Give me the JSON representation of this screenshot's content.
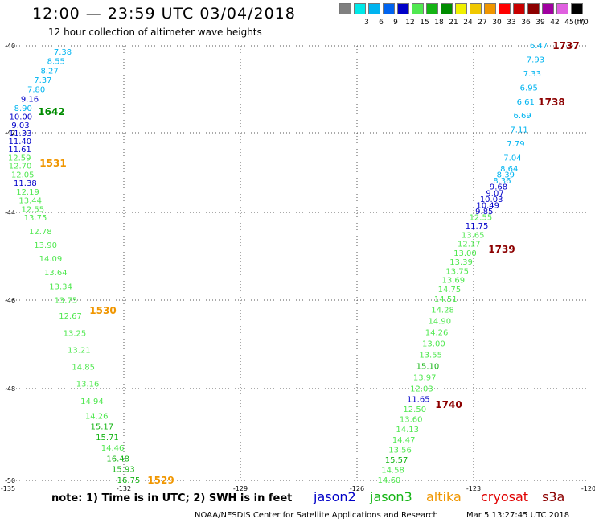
{
  "header": {
    "title": "12:00 — 23:59 UTC 03/04/2018",
    "subtitle": "12 hour collection of altimeter wave heights"
  },
  "colorbar": {
    "unit": "(ft)",
    "swatches": [
      {
        "label": "",
        "color": "#808080"
      },
      {
        "label": "3",
        "color": "#00e8e8"
      },
      {
        "label": "6",
        "color": "#00b4f0"
      },
      {
        "label": "9",
        "color": "#0064f0"
      },
      {
        "label": "12",
        "color": "#0000c8"
      },
      {
        "label": "15",
        "color": "#50e850"
      },
      {
        "label": "18",
        "color": "#14b414"
      },
      {
        "label": "21",
        "color": "#008c00"
      },
      {
        "label": "24",
        "color": "#f0f000"
      },
      {
        "label": "27",
        "color": "#f0c800"
      },
      {
        "label": "30",
        "color": "#f09600"
      },
      {
        "label": "33",
        "color": "#ff0000"
      },
      {
        "label": "36",
        "color": "#c80000"
      },
      {
        "label": "39",
        "color": "#8c0000"
      },
      {
        "label": "42",
        "color": "#a000a0"
      },
      {
        "label": "45",
        "color": "#e060e0"
      },
      {
        "label": "70",
        "color": "#000000"
      }
    ]
  },
  "map": {
    "lat_labels": [
      "-40",
      "-42",
      "-44",
      "-46",
      "-48",
      "-50"
    ],
    "lon_labels": [
      "-135",
      "-132",
      "-129",
      "-126",
      "-123",
      "-120"
    ],
    "west_track": [
      {
        "v": "7.38",
        "c": "#00b4f0"
      },
      {
        "v": "8.55",
        "c": "#00b4f0"
      },
      {
        "v": "8.27",
        "c": "#00b4f0"
      },
      {
        "v": "7.37",
        "c": "#00b4f0"
      },
      {
        "v": "7.80",
        "c": "#00b4f0"
      },
      {
        "v": "9.16",
        "c": "#0000c8"
      },
      {
        "v": "8.90",
        "c": "#00b4f0"
      },
      {
        "v": "10.00",
        "c": "#0000c8"
      },
      {
        "v": "9.03",
        "c": "#0000c8"
      },
      {
        "v": "11.33",
        "c": "#0000c8"
      },
      {
        "v": "11.40",
        "c": "#0000c8"
      },
      {
        "v": "11.61",
        "c": "#0000c8"
      },
      {
        "v": "12.59",
        "c": "#50e850"
      },
      {
        "v": "12.70",
        "c": "#50e850"
      },
      {
        "v": "12.05",
        "c": "#50e850"
      },
      {
        "v": "11.38",
        "c": "#0000c8"
      },
      {
        "v": "12.19",
        "c": "#50e850"
      },
      {
        "v": "13.44",
        "c": "#50e850"
      },
      {
        "v": "12.55",
        "c": "#50e850"
      },
      {
        "v": "13.75",
        "c": "#50e850"
      },
      {
        "v": "12.78",
        "c": "#50e850"
      },
      {
        "v": "13.90",
        "c": "#50e850"
      },
      {
        "v": "14.09",
        "c": "#50e850"
      },
      {
        "v": "13.64",
        "c": "#50e850"
      },
      {
        "v": "13.34",
        "c": "#50e850"
      },
      {
        "v": "13.75",
        "c": "#50e850"
      },
      {
        "v": "12.67",
        "c": "#50e850"
      },
      {
        "v": "13.25",
        "c": "#50e850"
      },
      {
        "v": "13.21",
        "c": "#50e850"
      },
      {
        "v": "14.85",
        "c": "#50e850"
      },
      {
        "v": "13.16",
        "c": "#50e850"
      },
      {
        "v": "14.94",
        "c": "#50e850"
      },
      {
        "v": "14.26",
        "c": "#50e850"
      },
      {
        "v": "15.17",
        "c": "#14b414"
      },
      {
        "v": "15.71",
        "c": "#14b414"
      },
      {
        "v": "14.46",
        "c": "#50e850"
      },
      {
        "v": "16.48",
        "c": "#14b414"
      },
      {
        "v": "15.93",
        "c": "#14b414"
      },
      {
        "v": "16.75",
        "c": "#14b414"
      }
    ],
    "east_track": [
      {
        "v": "6.47",
        "c": "#00b4f0"
      },
      {
        "v": "7.93",
        "c": "#00b4f0"
      },
      {
        "v": "7.33",
        "c": "#00b4f0"
      },
      {
        "v": "6.95",
        "c": "#00b4f0"
      },
      {
        "v": "6.61",
        "c": "#00b4f0"
      },
      {
        "v": "6.69",
        "c": "#00b4f0"
      },
      {
        "v": "7.11",
        "c": "#00b4f0"
      },
      {
        "v": "7.79",
        "c": "#00b4f0"
      },
      {
        "v": "7.04",
        "c": "#00b4f0"
      },
      {
        "v": "8.64",
        "c": "#00b4f0"
      },
      {
        "v": "8.39",
        "c": "#00b4f0"
      },
      {
        "v": "8.36",
        "c": "#00b4f0"
      },
      {
        "v": "9.68",
        "c": "#0000c8"
      },
      {
        "v": "9.07",
        "c": "#0000c8"
      },
      {
        "v": "10.03",
        "c": "#0000c8"
      },
      {
        "v": "10.49",
        "c": "#0000c8"
      },
      {
        "v": "9.85",
        "c": "#0000c8"
      },
      {
        "v": "12.55",
        "c": "#50e850"
      },
      {
        "v": "11.75",
        "c": "#0000c8"
      },
      {
        "v": "13.65",
        "c": "#50e850"
      },
      {
        "v": "12.17",
        "c": "#50e850"
      },
      {
        "v": "13.00",
        "c": "#50e850"
      },
      {
        "v": "13.39",
        "c": "#50e850"
      },
      {
        "v": "13.75",
        "c": "#50e850"
      },
      {
        "v": "13.69",
        "c": "#50e850"
      },
      {
        "v": "14.75",
        "c": "#50e850"
      },
      {
        "v": "14.51",
        "c": "#50e850"
      },
      {
        "v": "14.28",
        "c": "#50e850"
      },
      {
        "v": "14.90",
        "c": "#50e850"
      },
      {
        "v": "14.26",
        "c": "#50e850"
      },
      {
        "v": "13.00",
        "c": "#50e850"
      },
      {
        "v": "13.55",
        "c": "#50e850"
      },
      {
        "v": "15.10",
        "c": "#14b414"
      },
      {
        "v": "13.97",
        "c": "#50e850"
      },
      {
        "v": "12.03",
        "c": "#50e850"
      },
      {
        "v": "11.65",
        "c": "#0000c8"
      },
      {
        "v": "12.50",
        "c": "#50e850"
      },
      {
        "v": "13.60",
        "c": "#50e850"
      },
      {
        "v": "14.13",
        "c": "#50e850"
      },
      {
        "v": "14.47",
        "c": "#50e850"
      },
      {
        "v": "13.56",
        "c": "#50e850"
      },
      {
        "v": "15.57",
        "c": "#14b414"
      },
      {
        "v": "14.58",
        "c": "#50e850"
      },
      {
        "v": "14.60",
        "c": "#50e850"
      }
    ],
    "time_markers": [
      {
        "t": "1642",
        "c": "#008c00"
      },
      {
        "t": "1531",
        "c": "#f09600"
      },
      {
        "t": "1530",
        "c": "#f09600"
      },
      {
        "t": "1529",
        "c": "#f09600"
      },
      {
        "t": "1737",
        "c": "#8c0000"
      },
      {
        "t": "1738",
        "c": "#8c0000"
      },
      {
        "t": "1739",
        "c": "#8c0000"
      },
      {
        "t": "1740",
        "c": "#8c0000"
      }
    ]
  },
  "footer": {
    "note": "note: 1) Time is in UTC; 2) SWH is in feet",
    "satellites": [
      {
        "name": "jason2",
        "color": "#0000c8"
      },
      {
        "name": "jason3",
        "color": "#14b414"
      },
      {
        "name": "altika",
        "color": "#f09600"
      },
      {
        "name": "cryosat",
        "color": "#e00000"
      },
      {
        "name": "s3a",
        "color": "#8c0000"
      }
    ],
    "credit": "NOAA/NESDIS Center for Satellite Applications and Research",
    "timestamp": "Mar  5 13:27:45 UTC 2018"
  }
}
